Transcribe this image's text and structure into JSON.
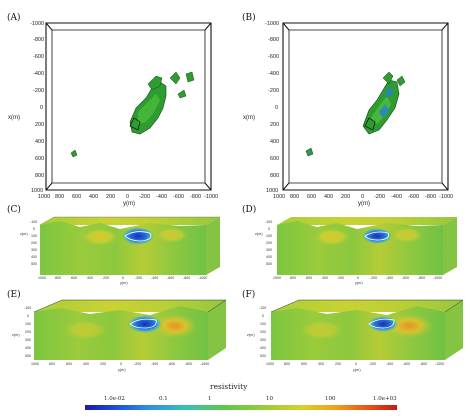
{
  "panels": {
    "A": "(A)",
    "B": "(B)",
    "C": "(C)",
    "D": "(D)",
    "E": "(E)",
    "F": "(F)"
  },
  "top_axes": {
    "xlabel": "x(m)",
    "ylabel": "y(m)",
    "x_ticks": [
      "-1000",
      "-800",
      "-600",
      "-400",
      "-200",
      "0",
      "200",
      "400",
      "600",
      "800",
      "1000"
    ],
    "y_ticks": [
      "1000",
      "800",
      "600",
      "400",
      "200",
      "0",
      "-200",
      "-400",
      "-600",
      "-800",
      "-1000"
    ]
  },
  "section_axes": {
    "depth_label": "z(m)",
    "y_label": "y(m)",
    "depth_ticks": [
      "-100",
      "0",
      "100",
      "200",
      "300",
      "400",
      "500"
    ],
    "y_ticks": [
      "1000",
      "800",
      "600",
      "400",
      "200",
      "0",
      "-200",
      "-400",
      "-600",
      "-800",
      "-1000"
    ]
  },
  "colorbar": {
    "title": "resistivity",
    "ticks": [
      "1.0e-02",
      "0.1",
      "1",
      "10",
      "100",
      "1.0e+03"
    ],
    "colors": [
      "#1a1aa8",
      "#1f4fd8",
      "#2a8fe0",
      "#38c0b0",
      "#5cc84a",
      "#9ccc3a",
      "#d8d02c",
      "#f0a020",
      "#e85a18",
      "#c81818"
    ]
  }
}
